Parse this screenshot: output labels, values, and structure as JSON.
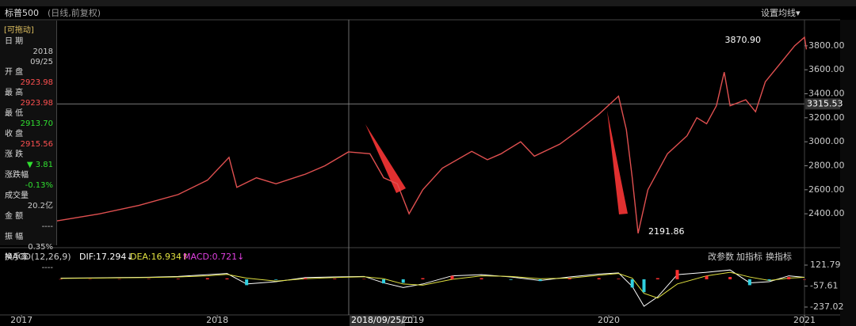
{
  "header": {
    "instrument": "标普500",
    "mode": "(日线,前复权)",
    "ma_settings": "设置均线▾"
  },
  "info_panel": {
    "drag": "[可拖动]",
    "rows": [
      {
        "label": "日 期",
        "value": "2018\n09/25"
      },
      {
        "label": "开 盘",
        "value": "2923.98"
      },
      {
        "label": "最 高",
        "value": "2923.98"
      },
      {
        "label": "最 低",
        "value": "2913.70"
      },
      {
        "label": "收 盘",
        "value": "2915.56"
      },
      {
        "label": "涨 跌",
        "value": "▼ 3.81"
      },
      {
        "label": "涨跌幅",
        "value": "-0.13%"
      },
      {
        "label": "成交量",
        "value": "20.2亿"
      },
      {
        "label": "金 额",
        "value": "----"
      },
      {
        "label": "振 幅",
        "value": "0.35%"
      },
      {
        "label": "换手率",
        "value": "----"
      }
    ]
  },
  "chart_data": [
    {
      "type": "line",
      "max_label": "3870.90",
      "min_label": "2191.86",
      "crosshair_date": "2018/09/25/二",
      "crosshair_value": 3315.53,
      "x": [
        2017.18,
        2017.4,
        2017.6,
        2017.8,
        2017.95,
        2018.06,
        2018.1,
        2018.2,
        2018.3,
        2018.45,
        2018.55,
        2018.67,
        2018.78,
        2018.85,
        2018.92,
        2018.98,
        2019.05,
        2019.15,
        2019.3,
        2019.38,
        2019.45,
        2019.55,
        2019.62,
        2019.75,
        2019.85,
        2019.95,
        2020.05,
        2020.09,
        2020.12,
        2020.15,
        2020.2,
        2020.3,
        2020.4,
        2020.45,
        2020.5,
        2020.55,
        2020.59,
        2020.62,
        2020.7,
        2020.75,
        2020.8,
        2020.85,
        2020.9,
        2020.95,
        2021.0,
        2021.01
      ],
      "series": [
        {
          "name": "标普500",
          "color": "#e05050",
          "values": [
            2340,
            2400,
            2470,
            2560,
            2680,
            2870,
            2620,
            2700,
            2650,
            2730,
            2800,
            2915.56,
            2900,
            2700,
            2650,
            2400,
            2600,
            2780,
            2920,
            2850,
            2900,
            3000,
            2880,
            2980,
            3100,
            3230,
            3380,
            3100,
            2700,
            2237,
            2600,
            2900,
            3050,
            3200,
            3150,
            3300,
            3580,
            3300,
            3350,
            3250,
            3500,
            3600,
            3700,
            3800,
            3870.9,
            3770
          ]
        }
      ],
      "xlim": [
        2016.89,
        2021.0
      ],
      "xticks": [
        2017,
        2018,
        2019,
        2020,
        2021
      ],
      "ylim": [
        2124,
        4010
      ],
      "yticks": [
        {
          "value": 2400,
          "label": "2400.00"
        },
        {
          "value": 2600,
          "label": "2600.00"
        },
        {
          "value": 2800,
          "label": "2800.00"
        },
        {
          "value": 3000,
          "label": "3000.00"
        },
        {
          "value": 3200,
          "label": "3200.00"
        },
        {
          "value": 3400,
          "label": "3400.00"
        },
        {
          "value": 3600,
          "label": "3600.00"
        },
        {
          "value": 3800,
          "label": "3800.00"
        }
      ]
    },
    {
      "type": "macd",
      "title": "MACD(12,26,9)",
      "readouts": [
        "DIF:17.294↓",
        "DEA:16.934↑",
        "MACD:0.721↓"
      ],
      "buttons": [
        "改参数",
        "加指标",
        "换指标"
      ],
      "x": [
        2017.2,
        2017.35,
        2017.5,
        2017.65,
        2017.8,
        2017.95,
        2018.05,
        2018.15,
        2018.3,
        2018.45,
        2018.6,
        2018.75,
        2018.85,
        2018.95,
        2019.05,
        2019.2,
        2019.35,
        2019.5,
        2019.65,
        2019.8,
        2019.95,
        2020.05,
        2020.12,
        2020.18,
        2020.25,
        2020.35,
        2020.5,
        2020.62,
        2020.72,
        2020.82,
        2020.92,
        2021.0
      ],
      "series": [
        {
          "name": "DIF",
          "color": "#ffffff",
          "values": [
            10,
            12,
            15,
            18,
            25,
            40,
            50,
            -40,
            -20,
            15,
            20,
            25,
            -30,
            -70,
            -40,
            30,
            40,
            20,
            -10,
            20,
            45,
            55,
            -60,
            -230,
            -150,
            40,
            60,
            80,
            -30,
            -20,
            30,
            17.294
          ]
        },
        {
          "name": "DEA",
          "color": "#e0e040",
          "values": [
            8,
            10,
            13,
            15,
            20,
            30,
            42,
            10,
            -15,
            5,
            15,
            22,
            5,
            -40,
            -50,
            0,
            30,
            25,
            5,
            10,
            35,
            50,
            10,
            -120,
            -160,
            -40,
            30,
            60,
            20,
            -10,
            10,
            16.934
          ]
        },
        {
          "name": "MACD",
          "up_color": "#ff3030",
          "down_color": "#30d0e0",
          "values": [
            2,
            2,
            2,
            3,
            5,
            10,
            8,
            -50,
            -5,
            10,
            5,
            3,
            -35,
            -30,
            10,
            30,
            10,
            -5,
            -15,
            10,
            10,
            5,
            -70,
            -110,
            10,
            80,
            30,
            20,
            -50,
            -10,
            20,
            0.721
          ]
        }
      ],
      "xlim": [
        2016.89,
        2021.0
      ],
      "ylim": [
        -291,
        237
      ],
      "yticks": [
        121.79,
        -57.61,
        -237.02
      ]
    }
  ]
}
